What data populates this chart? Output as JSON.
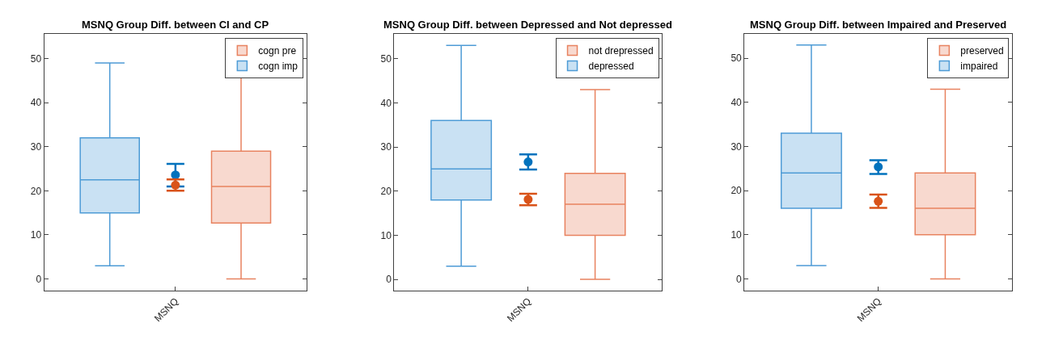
{
  "chart_data": [
    {
      "type": "box",
      "title": "MSNQ Group Diff. between CI and CP",
      "categories": [
        "MSNQ"
      ],
      "ylim": [
        -2.7,
        55.6
      ],
      "yticks": [
        0,
        10,
        20,
        30,
        40,
        50
      ],
      "legend": "top right",
      "series": [
        {
          "name": "cogn imp",
          "color": "#4d9bd6",
          "boxes": [
            {
              "low": 3,
              "q1": 15,
              "median": 22.5,
              "q3": 32,
              "high": 49
            }
          ]
        },
        {
          "name": "cogn pre",
          "color": "#e8825f",
          "boxes": [
            {
              "low": 0,
              "q1": 12.7,
              "median": 21,
              "q3": 29,
              "high": 53
            }
          ]
        },
        {
          "type": "scatter",
          "color": "#0072bd",
          "marker": "circle",
          "x": [
            "MSNQ"
          ],
          "values": [
            23.6
          ],
          "errors": [
            [
              21,
              26.1
            ]
          ]
        },
        {
          "type": "scatter",
          "color": "#d95319",
          "marker": "circle",
          "x": [
            "MSNQ"
          ],
          "values": [
            21.3
          ],
          "errors": [
            [
              20,
              22.6
            ]
          ]
        }
      ]
    },
    {
      "type": "box",
      "title": "MSNQ Group Diff. between Depressed and Not depressed",
      "categories": [
        "MSNQ"
      ],
      "ylim": [
        -2.6,
        55.6
      ],
      "yticks": [
        0,
        10,
        20,
        30,
        40,
        50
      ],
      "legend": "top right",
      "series": [
        {
          "name": "depressed",
          "color": "#4d9bd6",
          "boxes": [
            {
              "low": 3,
              "q1": 18,
              "median": 25,
              "q3": 36,
              "high": 53
            }
          ]
        },
        {
          "name": "not drepressed",
          "color": "#e8825f",
          "boxes": [
            {
              "low": 0,
              "q1": 10,
              "median": 17,
              "q3": 24,
              "high": 43
            }
          ]
        },
        {
          "type": "scatter",
          "color": "#0072bd",
          "marker": "circle",
          "x": [
            "MSNQ"
          ],
          "values": [
            26.6
          ],
          "errors": [
            [
              24.9,
              28.3
            ]
          ]
        },
        {
          "type": "scatter",
          "color": "#d95319",
          "marker": "circle",
          "x": [
            "MSNQ"
          ],
          "values": [
            18.1
          ],
          "errors": [
            [
              16.8,
              19.4
            ]
          ]
        }
      ]
    },
    {
      "type": "box",
      "title": "MSNQ Group Diff. between Impaired and Preserved",
      "categories": [
        "MSNQ"
      ],
      "ylim": [
        -2.7,
        55.5
      ],
      "yticks": [
        0,
        10,
        20,
        30,
        40,
        50
      ],
      "legend": "top right",
      "series": [
        {
          "name": "impaired",
          "color": "#4d9bd6",
          "boxes": [
            {
              "low": 3,
              "q1": 16,
              "median": 24,
              "q3": 33,
              "high": 53
            }
          ]
        },
        {
          "name": "preserved",
          "color": "#e8825f",
          "boxes": [
            {
              "low": 0,
              "q1": 10,
              "median": 16,
              "q3": 24,
              "high": 43
            }
          ]
        },
        {
          "type": "scatter",
          "color": "#0072bd",
          "marker": "circle",
          "x": [
            "MSNQ"
          ],
          "values": [
            25.4
          ],
          "errors": [
            [
              23.8,
              26.9
            ]
          ]
        },
        {
          "type": "scatter",
          "color": "#d95319",
          "marker": "circle",
          "x": [
            "MSNQ"
          ],
          "values": [
            17.6
          ],
          "errors": [
            [
              16.1,
              19.1
            ]
          ]
        }
      ]
    }
  ]
}
